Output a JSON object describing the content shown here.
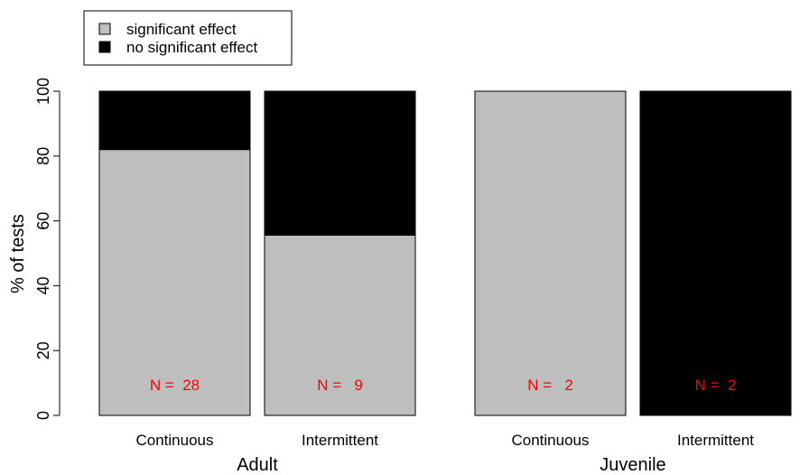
{
  "chart_data": {
    "type": "bar",
    "stacked": true,
    "ylabel": "% of tests",
    "ylim": [
      0,
      100
    ],
    "yticks": [
      0,
      20,
      40,
      60,
      80,
      100
    ],
    "grid": false,
    "legend": {
      "position": "top-left",
      "entries": [
        {
          "label": "significant effect",
          "color": "#bebebe"
        },
        {
          "label": "no significant effect",
          "color": "#000000"
        }
      ]
    },
    "groups": [
      "Adult",
      "Juvenile"
    ],
    "categories": [
      {
        "label": "Continuous",
        "group": "Adult",
        "significant": 82,
        "not_significant": 18,
        "n_text": "N =  28",
        "n_color": "#ff0000"
      },
      {
        "label": "Intermittent",
        "group": "Adult",
        "significant": 55.6,
        "not_significant": 44.4,
        "n_text": "N =   9",
        "n_color": "#ff0000"
      },
      {
        "label": "Continuous",
        "group": "Juvenile",
        "significant": 100,
        "not_significant": 0,
        "n_text": "N =   2",
        "n_color": "#ff0000"
      },
      {
        "label": "Intermittent",
        "group": "Juvenile",
        "significant": 0,
        "not_significant": 100,
        "n_text": "N =  2",
        "n_color": "#ff0000"
      }
    ],
    "series_colors": {
      "significant": "#bebebe",
      "not_significant": "#000000"
    }
  }
}
